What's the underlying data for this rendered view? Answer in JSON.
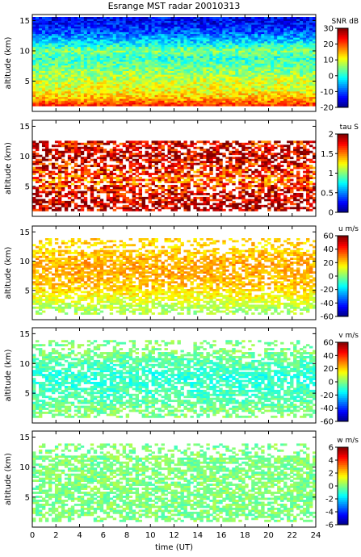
{
  "title": "Esrange MST radar 20010313",
  "chart_data": [
    {
      "type": "heatmap",
      "ylabel": "altitude (km)",
      "xlim": [
        0,
        24
      ],
      "ylim": [
        0,
        16
      ],
      "yticks": [
        5,
        10,
        15
      ],
      "colorbar": {
        "label": "SNR dB",
        "range": [
          -20,
          30
        ],
        "ticks": [
          30,
          20,
          10,
          0,
          -10,
          -20
        ],
        "scale": "jet"
      },
      "profile": [
        {
          "alt": 1,
          "value": 22
        },
        {
          "alt": 2,
          "value": 16
        },
        {
          "alt": 3,
          "value": 12
        },
        {
          "alt": 4,
          "value": 10
        },
        {
          "alt": 5,
          "value": 9
        },
        {
          "alt": 6,
          "value": 7
        },
        {
          "alt": 7,
          "value": 5
        },
        {
          "alt": 8,
          "value": 3
        },
        {
          "alt": 9,
          "value": 1
        },
        {
          "alt": 10,
          "value": 5
        },
        {
          "alt": 11,
          "value": 0
        },
        {
          "alt": 12,
          "value": -5
        },
        {
          "alt": 13,
          "value": -9
        },
        {
          "alt": 14,
          "value": -12
        },
        {
          "alt": 15,
          "value": -14
        }
      ]
    },
    {
      "type": "heatmap",
      "ylabel": "altitude (km)",
      "xlim": [
        0,
        24
      ],
      "ylim": [
        0,
        16
      ],
      "yticks": [
        5,
        10,
        15
      ],
      "colorbar": {
        "label": "tau S",
        "range": [
          0,
          2
        ],
        "ticks": [
          2,
          1.5,
          1,
          0.5,
          0
        ],
        "scale": "jet"
      },
      "profile": [
        {
          "alt": 2,
          "value": 1.9
        },
        {
          "alt": 4,
          "value": 1.8
        },
        {
          "alt": 6,
          "value": 1.6
        },
        {
          "alt": 8,
          "value": 1.7
        },
        {
          "alt": 10,
          "value": 1.9
        },
        {
          "alt": 12,
          "value": 1.8
        }
      ]
    },
    {
      "type": "heatmap",
      "ylabel": "altitude (km)",
      "xlim": [
        0,
        24
      ],
      "ylim": [
        0,
        16
      ],
      "yticks": [
        5,
        10,
        15
      ],
      "colorbar": {
        "label": "u m/s",
        "range": [
          -60,
          60
        ],
        "ticks": [
          60,
          40,
          20,
          0,
          -20,
          -40,
          -60
        ],
        "scale": "jet"
      },
      "profile": [
        {
          "alt": 2,
          "value": 5
        },
        {
          "alt": 4,
          "value": 15
        },
        {
          "alt": 6,
          "value": 22
        },
        {
          "alt": 8,
          "value": 25
        },
        {
          "alt": 10,
          "value": 25
        },
        {
          "alt": 12,
          "value": 20
        }
      ]
    },
    {
      "type": "heatmap",
      "ylabel": "altitude (km)",
      "xlim": [
        0,
        24
      ],
      "ylim": [
        0,
        16
      ],
      "yticks": [
        5,
        10,
        15
      ],
      "colorbar": {
        "label": "v m/s",
        "range": [
          -60,
          60
        ],
        "ticks": [
          60,
          40,
          20,
          0,
          -20,
          -40,
          -60
        ],
        "scale": "jet"
      },
      "profile": [
        {
          "alt": 2,
          "value": 0
        },
        {
          "alt": 4,
          "value": -5
        },
        {
          "alt": 6,
          "value": -8
        },
        {
          "alt": 8,
          "value": -10
        },
        {
          "alt": 10,
          "value": -5
        },
        {
          "alt": 12,
          "value": 0
        }
      ]
    },
    {
      "type": "heatmap",
      "ylabel": "altitude (km)",
      "xlabel": "time (UT)",
      "xlim": [
        0,
        24
      ],
      "ylim": [
        0,
        16
      ],
      "yticks": [
        5,
        10,
        15
      ],
      "xticks": [
        0,
        2,
        4,
        6,
        8,
        10,
        12,
        14,
        16,
        18,
        20,
        22,
        24
      ],
      "colorbar": {
        "label": "w m/s",
        "range": [
          -6,
          6
        ],
        "ticks": [
          6,
          4,
          2,
          0,
          -2,
          -4,
          -6
        ],
        "scale": "jet"
      },
      "profile": [
        {
          "alt": 2,
          "value": 0
        },
        {
          "alt": 4,
          "value": 0
        },
        {
          "alt": 6,
          "value": 0
        },
        {
          "alt": 8,
          "value": 0
        },
        {
          "alt": 10,
          "value": 0
        },
        {
          "alt": 12,
          "value": 0
        }
      ]
    }
  ]
}
